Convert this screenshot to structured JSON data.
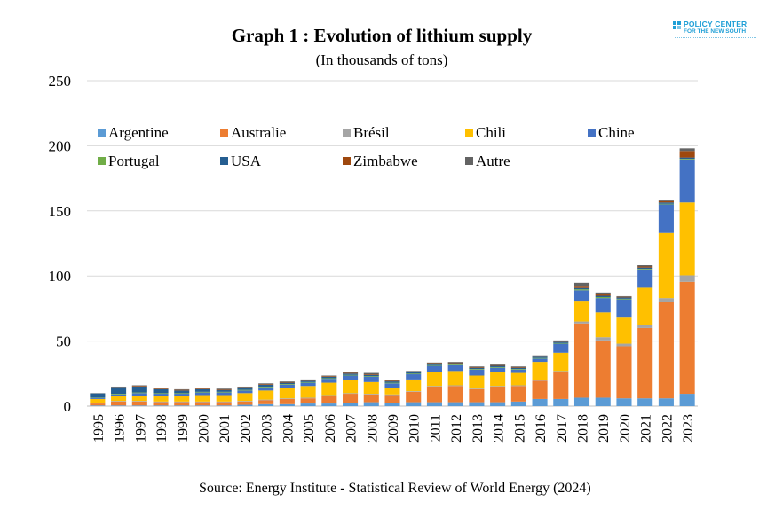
{
  "title": "Graph 1 : Evolution of lithium supply",
  "subtitle": "(In thousands of tons)",
  "source": "Source: Energy Institute - Statistical Review of World Energy (2024)",
  "logo": {
    "line1": "POLICY CENTER",
    "line2": "FOR THE NEW SOUTH"
  },
  "colors": {
    "Argentine": "#5b9bd5",
    "Australie": "#ed7d31",
    "Brésil": "#a5a5a5",
    "Chili": "#ffc000",
    "Chine": "#4472c4",
    "Portugal": "#70ad47",
    "USA": "#255e91",
    "Zimbabwe": "#9e480e",
    "Autre": "#636363",
    "logo": "#1f9fd6"
  },
  "chart_data": {
    "type": "bar",
    "stacked": true,
    "title": "Graph 1 : Evolution of lithium supply",
    "subtitle": "(In thousands of tons)",
    "xlabel": "",
    "ylabel": "",
    "ylim": [
      0,
      250
    ],
    "yticks": [
      0,
      50,
      100,
      150,
      200,
      250
    ],
    "grid": true,
    "legend_position": "top",
    "categories": [
      "1995",
      "1996",
      "1997",
      "1998",
      "1999",
      "2000",
      "2001",
      "2002",
      "2003",
      "2004",
      "2005",
      "2006",
      "2007",
      "2008",
      "2009",
      "2010",
      "2011",
      "2012",
      "2013",
      "2014",
      "2015",
      "2016",
      "2017",
      "2018",
      "2019",
      "2020",
      "2021",
      "2022",
      "2023"
    ],
    "series": [
      {
        "name": "Argentine",
        "values": [
          0.5,
          0.5,
          0.5,
          0.5,
          0.5,
          0.5,
          0.5,
          1,
          1.5,
          1.5,
          2,
          2,
          2.5,
          3,
          2.5,
          3,
          3,
          3,
          3,
          3,
          3.5,
          5.5,
          5.5,
          6.5,
          6.5,
          6,
          6,
          6,
          9.5
        ]
      },
      {
        "name": "Australie",
        "values": [
          1.5,
          3,
          3,
          2.5,
          2.5,
          2.5,
          2.5,
          2.5,
          3,
          4,
          4,
          6,
          7,
          6,
          6,
          8,
          12,
          12.5,
          10,
          12,
          12,
          14,
          21,
          57,
          44,
          40,
          54,
          74,
          86
        ]
      },
      {
        "name": "Brésil",
        "values": [
          0.5,
          0.5,
          0.5,
          0.5,
          0.5,
          0.5,
          0.5,
          0.5,
          0.5,
          0.5,
          0.5,
          0.5,
          0.5,
          0.5,
          0.5,
          0.5,
          0.5,
          0.5,
          0.5,
          0.5,
          0.5,
          0.5,
          0.5,
          1.5,
          2.5,
          2,
          2,
          3,
          5
        ]
      },
      {
        "name": "Chili",
        "values": [
          3,
          3.5,
          4,
          4.5,
          4.5,
          5,
          5,
          6,
          7,
          8,
          9,
          9.5,
          10,
          9,
          5,
          9,
          11,
          11,
          10,
          11,
          9.5,
          14,
          14,
          16,
          19,
          20,
          29,
          50,
          56
        ]
      },
      {
        "name": "Chine",
        "values": [
          1,
          1.5,
          2,
          1.5,
          1.5,
          2,
          2,
          2,
          2.5,
          2.5,
          2.5,
          3,
          3.5,
          4,
          3.5,
          4,
          4.5,
          4.5,
          4.5,
          3,
          2.5,
          2.5,
          7,
          8,
          11,
          14,
          14,
          22,
          33
        ]
      },
      {
        "name": "Portugal",
        "values": [
          0.3,
          0.5,
          0.5,
          0.5,
          0.5,
          0.5,
          0.5,
          0.5,
          0.5,
          0.5,
          0.5,
          0.5,
          0.5,
          0.5,
          0.5,
          0.5,
          0.5,
          0.5,
          0.5,
          0.5,
          0.5,
          0.5,
          0.5,
          0.8,
          0.8,
          0.5,
          0.5,
          0.5,
          0.5
        ]
      },
      {
        "name": "USA",
        "values": [
          3,
          5,
          4.5,
          3,
          2,
          2,
          1.5,
          1.5,
          1.5,
          1,
          1,
          1,
          1,
          1,
          1,
          1,
          1,
          1,
          1,
          1,
          1,
          1,
          1,
          1,
          1,
          1,
          1,
          1,
          1
        ]
      },
      {
        "name": "Zimbabwe",
        "values": [
          0,
          0,
          0.5,
          0.5,
          0.5,
          0.5,
          0.5,
          0.5,
          0.5,
          0.5,
          0.5,
          0.5,
          0.5,
          0.5,
          0.5,
          0.5,
          0.5,
          0.5,
          0.5,
          0.5,
          0.5,
          0.5,
          0.5,
          1,
          1,
          0.5,
          0.8,
          1,
          5
        ]
      },
      {
        "name": "Autre",
        "values": [
          0.2,
          0.5,
          0.5,
          0.5,
          0.5,
          0.5,
          0.5,
          0.5,
          0.5,
          0.5,
          0.5,
          0.5,
          1,
          1,
          0.5,
          0.5,
          0.5,
          0.5,
          0.5,
          0.5,
          0.5,
          0.5,
          0.5,
          3,
          1.5,
          0.5,
          1,
          1,
          2
        ]
      }
    ]
  }
}
